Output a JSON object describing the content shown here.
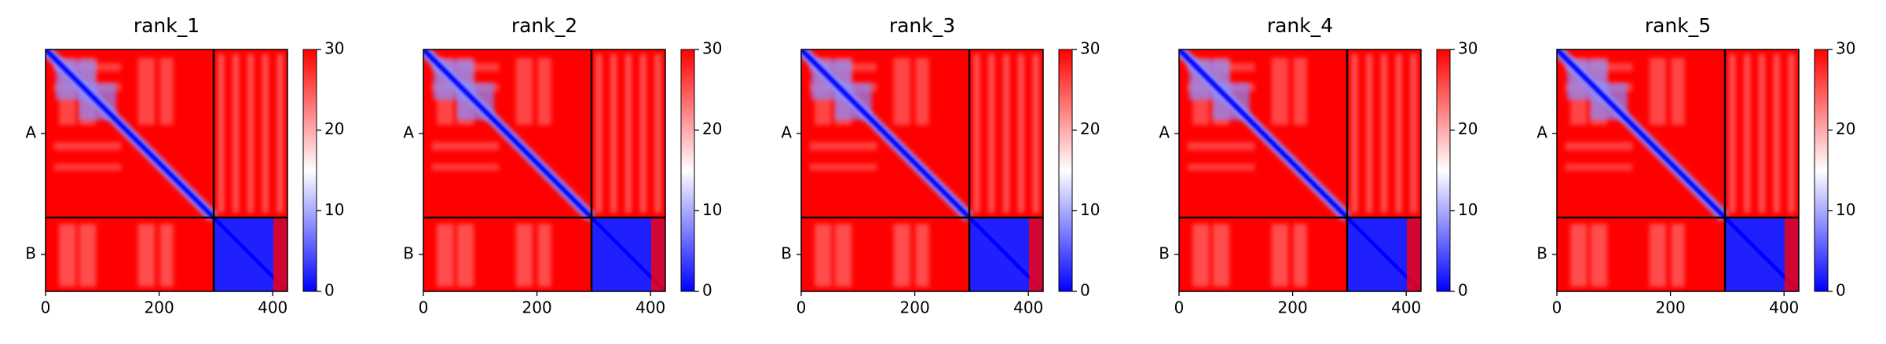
{
  "chart_data": [
    {
      "type": "heatmap",
      "title": "rank_1",
      "xlim": [
        0,
        426
      ],
      "xticks": [
        0,
        200,
        400
      ],
      "categories": [
        "A",
        "B"
      ],
      "chain_boundary": 296,
      "clim": [
        0,
        30
      ],
      "cticks": [
        0,
        10,
        20,
        30
      ],
      "colors": [
        "#0000ff",
        "#ffffff",
        "#ff0000"
      ]
    },
    {
      "type": "heatmap",
      "title": "rank_2",
      "xlim": [
        0,
        426
      ],
      "xticks": [
        0,
        200,
        400
      ],
      "categories": [
        "A",
        "B"
      ],
      "chain_boundary": 296,
      "clim": [
        0,
        30
      ],
      "cticks": [
        0,
        10,
        20,
        30
      ],
      "colors": [
        "#0000ff",
        "#ffffff",
        "#ff0000"
      ]
    },
    {
      "type": "heatmap",
      "title": "rank_3",
      "xlim": [
        0,
        426
      ],
      "xticks": [
        0,
        200,
        400
      ],
      "categories": [
        "A",
        "B"
      ],
      "chain_boundary": 296,
      "clim": [
        0,
        30
      ],
      "cticks": [
        0,
        10,
        20,
        30
      ],
      "colors": [
        "#0000ff",
        "#ffffff",
        "#ff0000"
      ]
    },
    {
      "type": "heatmap",
      "title": "rank_4",
      "xlim": [
        0,
        426
      ],
      "xticks": [
        0,
        200,
        400
      ],
      "categories": [
        "A",
        "B"
      ],
      "chain_boundary": 296,
      "clim": [
        0,
        30
      ],
      "cticks": [
        0,
        10,
        20,
        30
      ],
      "colors": [
        "#0000ff",
        "#ffffff",
        "#ff0000"
      ]
    },
    {
      "type": "heatmap",
      "title": "rank_5",
      "xlim": [
        0,
        426
      ],
      "xticks": [
        0,
        200,
        400
      ],
      "categories": [
        "A",
        "B"
      ],
      "chain_boundary": 296,
      "clim": [
        0,
        30
      ],
      "cticks": [
        0,
        10,
        20,
        30
      ],
      "colors": [
        "#0000ff",
        "#ffffff",
        "#ff0000"
      ]
    }
  ]
}
